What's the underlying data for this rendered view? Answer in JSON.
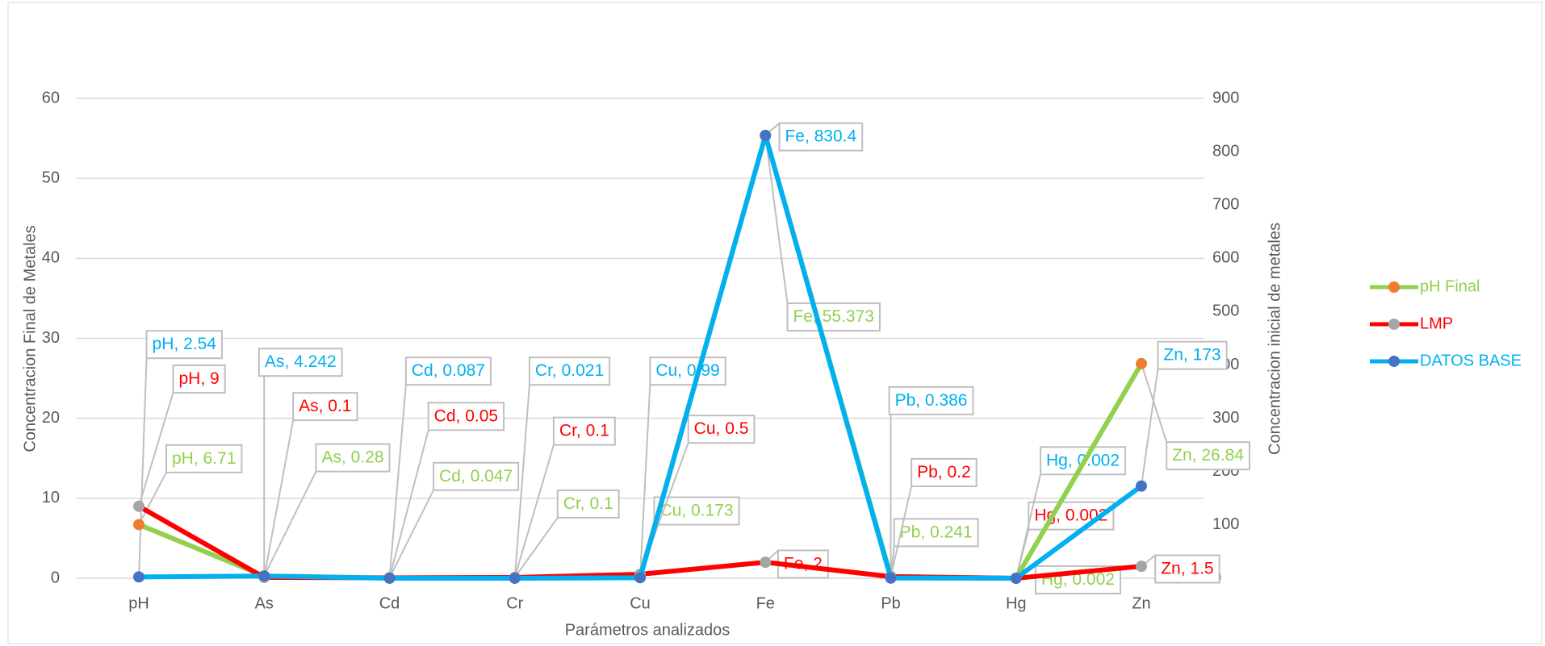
{
  "chart_data": {
    "type": "line",
    "x_label": "Parámetros analizados",
    "y_label": "Concentracion Final de Metales",
    "y2_label": "Concentracion inicial de metales",
    "categories": [
      "pH",
      "As",
      "Cd",
      "Cr",
      "Cu",
      "Fe",
      "Pb",
      "Hg",
      "Zn"
    ],
    "ylim": [
      0,
      60
    ],
    "yticks": [
      0,
      10,
      20,
      30,
      40,
      50,
      60
    ],
    "y2lim": [
      0,
      900
    ],
    "y2ticks": [
      0,
      100,
      200,
      300,
      400,
      500,
      600,
      700,
      800,
      900
    ],
    "grid": true,
    "legend": "right",
    "series": [
      {
        "name": "pH Final",
        "color": "#92d050",
        "marker_color": "#ed7d31",
        "axis": "y",
        "values": [
          6.71,
          0.28,
          0.047,
          0.1,
          0.173,
          55.373,
          0.241,
          0.002,
          26.84
        ]
      },
      {
        "name": "LMP",
        "color": "#ff0000",
        "marker_color": "#a5a5a5",
        "axis": "y",
        "values": [
          9,
          0.1,
          0.05,
          0.1,
          0.5,
          2,
          0.2,
          0.002,
          1.5
        ]
      },
      {
        "name": "DATOS BASE",
        "color": "#00b0f0",
        "marker_color": "#4472c4",
        "axis": "y2",
        "values": [
          2.54,
          4.242,
          0.087,
          0.021,
          0.99,
          830.4,
          0.386,
          0.002,
          173
        ]
      }
    ]
  }
}
